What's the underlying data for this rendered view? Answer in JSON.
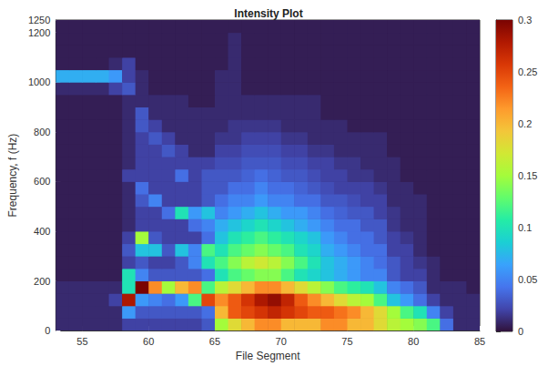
{
  "chart_data": {
    "type": "heatmap",
    "title": "Intensity Plot",
    "x_label": "File Segment",
    "y_label": "Frequency, f (Hz)",
    "xlim": [
      53,
      85
    ],
    "xticks": [
      55,
      60,
      65,
      70,
      75,
      80,
      85
    ],
    "ylim": [
      0,
      1250
    ],
    "yticks": [
      0,
      200,
      400,
      600,
      800,
      1000,
      1200
    ],
    "x_bins": [
      53,
      54,
      55,
      56,
      57,
      58,
      59,
      60,
      61,
      62,
      63,
      64,
      65,
      66,
      67,
      68,
      69,
      70,
      71,
      72,
      73,
      74,
      75,
      76,
      77,
      78,
      79,
      80,
      81,
      82,
      83,
      84,
      85
    ],
    "y_bins": [
      0,
      50,
      100,
      150,
      200,
      250,
      300,
      350,
      400,
      450,
      500,
      550,
      600,
      650,
      700,
      750,
      800,
      850,
      900,
      950,
      1000,
      1050,
      1100,
      1150,
      1200,
      1250
    ],
    "z": [
      [
        0.01,
        0.01,
        0.01,
        0.01,
        0.01,
        0.02,
        0.02,
        0.02,
        0.02,
        0.02,
        0.02,
        0.03,
        0.15,
        0.18,
        0.2,
        0.22,
        0.22,
        0.2,
        0.2,
        0.2,
        0.22,
        0.22,
        0.2,
        0.2,
        0.18,
        0.16,
        0.15,
        0.14,
        0.12,
        0.04,
        0.01,
        0.01
      ],
      [
        0.01,
        0.01,
        0.01,
        0.01,
        0.01,
        0.06,
        0.03,
        0.03,
        0.03,
        0.03,
        0.03,
        0.04,
        0.2,
        0.24,
        0.25,
        0.26,
        0.27,
        0.26,
        0.25,
        0.24,
        0.24,
        0.23,
        0.22,
        0.2,
        0.18,
        0.15,
        0.12,
        0.1,
        0.05,
        0.02,
        0.01,
        0.01
      ],
      [
        0.01,
        0.01,
        0.01,
        0.01,
        0.02,
        0.28,
        0.06,
        0.05,
        0.04,
        0.06,
        0.12,
        0.25,
        0.22,
        0.24,
        0.26,
        0.28,
        0.29,
        0.27,
        0.24,
        0.22,
        0.2,
        0.18,
        0.16,
        0.15,
        0.12,
        0.08,
        0.06,
        0.04,
        0.02,
        0.01,
        0.01,
        0.01
      ],
      [
        0.01,
        0.01,
        0.01,
        0.01,
        0.01,
        0.1,
        0.3,
        0.22,
        0.15,
        0.2,
        0.22,
        0.12,
        0.16,
        0.18,
        0.2,
        0.22,
        0.22,
        0.2,
        0.18,
        0.16,
        0.14,
        0.12,
        0.11,
        0.1,
        0.08,
        0.05,
        0.04,
        0.03,
        0.01,
        0.01,
        0.01,
        0.005
      ],
      [
        0.005,
        0.005,
        0.005,
        0.005,
        0.005,
        0.1,
        0.05,
        0.03,
        0.03,
        0.03,
        0.03,
        0.04,
        0.1,
        0.12,
        0.13,
        0.14,
        0.14,
        0.12,
        0.1,
        0.09,
        0.08,
        0.07,
        0.06,
        0.05,
        0.05,
        0.03,
        0.02,
        0.02,
        0.01,
        0.005,
        0.005,
        0.005
      ],
      [
        0.005,
        0.005,
        0.005,
        0.005,
        0.005,
        0.02,
        0.03,
        0.02,
        0.02,
        0.03,
        0.05,
        0.1,
        0.12,
        0.14,
        0.16,
        0.17,
        0.16,
        0.14,
        0.12,
        0.1,
        0.08,
        0.07,
        0.06,
        0.05,
        0.04,
        0.03,
        0.02,
        0.015,
        0.01,
        0.005,
        0.005,
        0.005
      ],
      [
        0.005,
        0.005,
        0.005,
        0.005,
        0.005,
        0.03,
        0.08,
        0.08,
        0.03,
        0.08,
        0.05,
        0.12,
        0.1,
        0.12,
        0.13,
        0.14,
        0.13,
        0.12,
        0.1,
        0.09,
        0.07,
        0.06,
        0.05,
        0.04,
        0.04,
        0.02,
        0.02,
        0.01,
        0.005,
        0.005,
        0.005,
        0.005
      ],
      [
        0.005,
        0.005,
        0.005,
        0.005,
        0.005,
        0.02,
        0.15,
        0.03,
        0.02,
        0.02,
        0.02,
        0.04,
        0.08,
        0.1,
        0.11,
        0.12,
        0.11,
        0.1,
        0.09,
        0.08,
        0.06,
        0.05,
        0.04,
        0.04,
        0.03,
        0.02,
        0.015,
        0.01,
        0.005,
        0.005,
        0.005,
        0.005
      ],
      [
        0.005,
        0.005,
        0.005,
        0.005,
        0.005,
        0.01,
        0.02,
        0.02,
        0.02,
        0.02,
        0.04,
        0.05,
        0.07,
        0.08,
        0.09,
        0.1,
        0.09,
        0.08,
        0.07,
        0.06,
        0.05,
        0.04,
        0.04,
        0.03,
        0.03,
        0.015,
        0.01,
        0.01,
        0.005,
        0.005,
        0.005,
        0.005
      ],
      [
        0.005,
        0.005,
        0.005,
        0.005,
        0.005,
        0.01,
        0.02,
        0.02,
        0.04,
        0.1,
        0.06,
        0.08,
        0.05,
        0.06,
        0.07,
        0.08,
        0.07,
        0.06,
        0.06,
        0.05,
        0.04,
        0.035,
        0.03,
        0.03,
        0.02,
        0.015,
        0.01,
        0.01,
        0.005,
        0.005,
        0.005,
        0.005
      ],
      [
        0.005,
        0.005,
        0.005,
        0.005,
        0.005,
        0.01,
        0.03,
        0.05,
        0.02,
        0.02,
        0.02,
        0.03,
        0.04,
        0.05,
        0.05,
        0.06,
        0.05,
        0.05,
        0.04,
        0.04,
        0.03,
        0.03,
        0.025,
        0.02,
        0.02,
        0.01,
        0.01,
        0.01,
        0.005,
        0.005,
        0.005,
        0.005
      ],
      [
        0.005,
        0.005,
        0.005,
        0.005,
        0.005,
        0.01,
        0.04,
        0.02,
        0.02,
        0.02,
        0.02,
        0.03,
        0.03,
        0.04,
        0.04,
        0.05,
        0.04,
        0.04,
        0.035,
        0.03,
        0.025,
        0.02,
        0.02,
        0.02,
        0.015,
        0.01,
        0.01,
        0.005,
        0.005,
        0.005,
        0.005,
        0.005
      ],
      [
        0.005,
        0.005,
        0.005,
        0.005,
        0.005,
        0.02,
        0.02,
        0.02,
        0.02,
        0.04,
        0.02,
        0.03,
        0.03,
        0.03,
        0.035,
        0.04,
        0.035,
        0.03,
        0.03,
        0.025,
        0.02,
        0.02,
        0.015,
        0.015,
        0.01,
        0.01,
        0.005,
        0.005,
        0.005,
        0.005,
        0.005,
        0.005
      ],
      [
        0.005,
        0.005,
        0.005,
        0.005,
        0.005,
        0.01,
        0.02,
        0.02,
        0.02,
        0.02,
        0.02,
        0.02,
        0.025,
        0.025,
        0.03,
        0.03,
        0.03,
        0.025,
        0.025,
        0.02,
        0.02,
        0.015,
        0.015,
        0.01,
        0.01,
        0.01,
        0.005,
        0.005,
        0.005,
        0.005,
        0.005,
        0.005
      ],
      [
        0.005,
        0.005,
        0.005,
        0.005,
        0.005,
        0.01,
        0.02,
        0.02,
        0.03,
        0.02,
        0.01,
        0.01,
        0.02,
        0.02,
        0.025,
        0.025,
        0.025,
        0.02,
        0.02,
        0.015,
        0.015,
        0.01,
        0.01,
        0.01,
        0.01,
        0.005,
        0.005,
        0.005,
        0.005,
        0.005,
        0.005,
        0.005
      ],
      [
        0.005,
        0.005,
        0.005,
        0.005,
        0.005,
        0.01,
        0.02,
        0.03,
        0.02,
        0.01,
        0.01,
        0.01,
        0.015,
        0.015,
        0.02,
        0.02,
        0.02,
        0.015,
        0.015,
        0.01,
        0.01,
        0.01,
        0.01,
        0.01,
        0.01,
        0.005,
        0.005,
        0.005,
        0.005,
        0.005,
        0.005,
        0.005
      ],
      [
        0.005,
        0.005,
        0.005,
        0.005,
        0.005,
        0.01,
        0.03,
        0.02,
        0.01,
        0.01,
        0.01,
        0.01,
        0.01,
        0.015,
        0.015,
        0.015,
        0.015,
        0.01,
        0.01,
        0.01,
        0.01,
        0.01,
        0.005,
        0.005,
        0.005,
        0.005,
        0.005,
        0.005,
        0.005,
        0.005,
        0.005,
        0.005
      ],
      [
        0.005,
        0.005,
        0.005,
        0.005,
        0.005,
        0.01,
        0.03,
        0.01,
        0.01,
        0.01,
        0.01,
        0.01,
        0.01,
        0.01,
        0.01,
        0.01,
        0.01,
        0.01,
        0.01,
        0.01,
        0.005,
        0.005,
        0.005,
        0.005,
        0.005,
        0.005,
        0.005,
        0.005,
        0.005,
        0.005,
        0.005,
        0.005
      ],
      [
        0.005,
        0.005,
        0.005,
        0.005,
        0.005,
        0.01,
        0.01,
        0.01,
        0.01,
        0.01,
        0.005,
        0.005,
        0.01,
        0.01,
        0.01,
        0.01,
        0.01,
        0.01,
        0.01,
        0.01,
        0.005,
        0.005,
        0.005,
        0.005,
        0.005,
        0.005,
        0.005,
        0.005,
        0.005,
        0.005,
        0.005,
        0.005
      ],
      [
        0.01,
        0.01,
        0.01,
        0.01,
        0.02,
        0.03,
        0.01,
        0.005,
        0.005,
        0.005,
        0.005,
        0.005,
        0.01,
        0.01,
        0.005,
        0.005,
        0.005,
        0.005,
        0.005,
        0.005,
        0.005,
        0.005,
        0.005,
        0.005,
        0.005,
        0.005,
        0.005,
        0.005,
        0.005,
        0.005,
        0.005,
        0.005
      ],
      [
        0.07,
        0.07,
        0.07,
        0.07,
        0.06,
        0.02,
        0.01,
        0.005,
        0.005,
        0.005,
        0.005,
        0.005,
        0.01,
        0.01,
        0.005,
        0.005,
        0.005,
        0.005,
        0.005,
        0.005,
        0.005,
        0.005,
        0.005,
        0.005,
        0.005,
        0.005,
        0.005,
        0.005,
        0.005,
        0.005,
        0.005,
        0.005
      ],
      [
        0.005,
        0.005,
        0.005,
        0.005,
        0.01,
        0.02,
        0.005,
        0.005,
        0.005,
        0.005,
        0.005,
        0.005,
        0.005,
        0.01,
        0.005,
        0.005,
        0.005,
        0.005,
        0.005,
        0.005,
        0.005,
        0.005,
        0.005,
        0.005,
        0.005,
        0.005,
        0.005,
        0.005,
        0.005,
        0.005,
        0.005,
        0.005
      ],
      [
        0.005,
        0.005,
        0.005,
        0.005,
        0.005,
        0.005,
        0.005,
        0.005,
        0.005,
        0.005,
        0.005,
        0.005,
        0.005,
        0.01,
        0.005,
        0.005,
        0.005,
        0.005,
        0.005,
        0.005,
        0.005,
        0.005,
        0.005,
        0.005,
        0.005,
        0.005,
        0.005,
        0.005,
        0.005,
        0.005,
        0.005,
        0.005
      ],
      [
        0.005,
        0.005,
        0.005,
        0.005,
        0.005,
        0.005,
        0.005,
        0.005,
        0.005,
        0.005,
        0.005,
        0.005,
        0.005,
        0.01,
        0.005,
        0.005,
        0.005,
        0.005,
        0.005,
        0.005,
        0.005,
        0.005,
        0.005,
        0.005,
        0.005,
        0.005,
        0.005,
        0.005,
        0.005,
        0.005,
        0.005,
        0.005
      ],
      [
        0.005,
        0.005,
        0.005,
        0.005,
        0.005,
        0.005,
        0.005,
        0.005,
        0.005,
        0.005,
        0.005,
        0.005,
        0.005,
        0.005,
        0.005,
        0.005,
        0.005,
        0.005,
        0.005,
        0.005,
        0.005,
        0.005,
        0.005,
        0.005,
        0.005,
        0.005,
        0.005,
        0.005,
        0.005,
        0.005,
        0.005,
        0.005
      ]
    ],
    "colorbar": {
      "range": [
        0,
        0.3
      ],
      "ticks": [
        0,
        0.05,
        0.1,
        0.15,
        0.2,
        0.25,
        0.3
      ]
    }
  }
}
